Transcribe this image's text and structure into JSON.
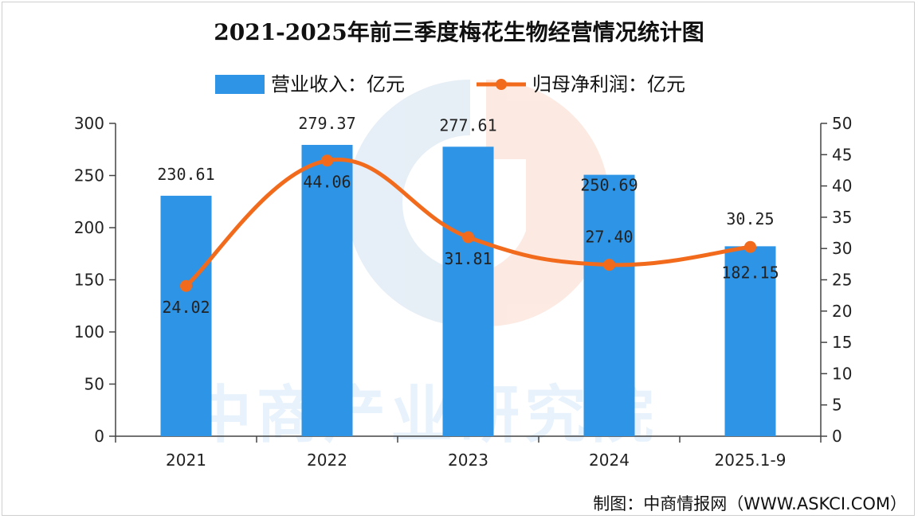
{
  "chart_data": {
    "type": "bar",
    "title": "2021-2025年前三季度梅花生物经营情况统计图",
    "categories": [
      "2021",
      "2022",
      "2023",
      "2024",
      "2025.1-9"
    ],
    "series": [
      {
        "name": "营业收入：亿元",
        "type": "bar",
        "axis": "left",
        "values": [
          230.61,
          279.37,
          277.61,
          250.69,
          182.15
        ],
        "labels": [
          "230.61",
          "279.37",
          "277.61",
          "250.69",
          "182.15"
        ]
      },
      {
        "name": "归母净利润：亿元",
        "type": "line",
        "axis": "right",
        "values": [
          24.02,
          44.06,
          31.81,
          27.4,
          30.25
        ],
        "labels": [
          "24.02",
          "44.06",
          "31.81",
          "27.40",
          "30.25"
        ]
      }
    ],
    "y_left": {
      "min": 0,
      "max": 300,
      "step": 50,
      "ticks": [
        "0",
        "50",
        "100",
        "150",
        "200",
        "250",
        "300"
      ]
    },
    "y_right": {
      "min": 0,
      "max": 50,
      "step": 5,
      "ticks": [
        "0",
        "5",
        "10",
        "15",
        "20",
        "25",
        "30",
        "35",
        "40",
        "45",
        "50"
      ]
    },
    "legend_position": "top",
    "grid": false
  },
  "colors": {
    "bar": "#2e94e6",
    "line": "#f26b1d",
    "axis": "#444444"
  },
  "watermark": "中商产业研究院",
  "source": "制图：中商情报网（WWW.ASKCI.COM）"
}
